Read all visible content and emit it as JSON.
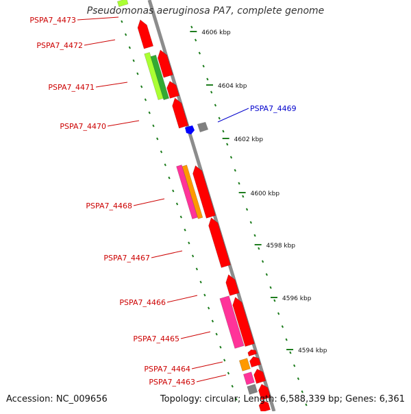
{
  "title": "Pseudomonas aeruginosa PA7, complete genome",
  "footer": {
    "accession": "Accession: NC_009656",
    "topology": "Topology: circular; Length: 6,588,339 bp; Genes: 6,361"
  },
  "colors": {
    "backbone": "#8c8c8c",
    "tick": "#1e7d1e",
    "gene_red": "#ff0000",
    "gene_pink": "#ff3399",
    "gene_orange": "#ff9900",
    "gene_lime": "#aaff33",
    "gene_green": "#33aa33",
    "gene_blue": "#0000ff",
    "gene_gray": "#808080",
    "label_red": "#cc0000",
    "label_blue": "#0000cc"
  },
  "scale_labels": [
    "4606 kbp",
    "4604 kbp",
    "4602 kbp",
    "4600 kbp",
    "4598 kbp",
    "4596 kbp",
    "4594 kbp"
  ],
  "gene_labels": [
    {
      "id": "PSPA7_4473",
      "color": "red"
    },
    {
      "id": "PSPA7_4472",
      "color": "red"
    },
    {
      "id": "PSPA7_4471",
      "color": "red"
    },
    {
      "id": "PSPA7_4470",
      "color": "red"
    },
    {
      "id": "PSPA7_4469",
      "color": "blue"
    },
    {
      "id": "PSPA7_4468",
      "color": "red"
    },
    {
      "id": "PSPA7_4467",
      "color": "red"
    },
    {
      "id": "PSPA7_4466",
      "color": "red"
    },
    {
      "id": "PSPA7_4465",
      "color": "red"
    },
    {
      "id": "PSPA7_4464",
      "color": "red"
    },
    {
      "id": "PSPA7_4463",
      "color": "red"
    }
  ]
}
